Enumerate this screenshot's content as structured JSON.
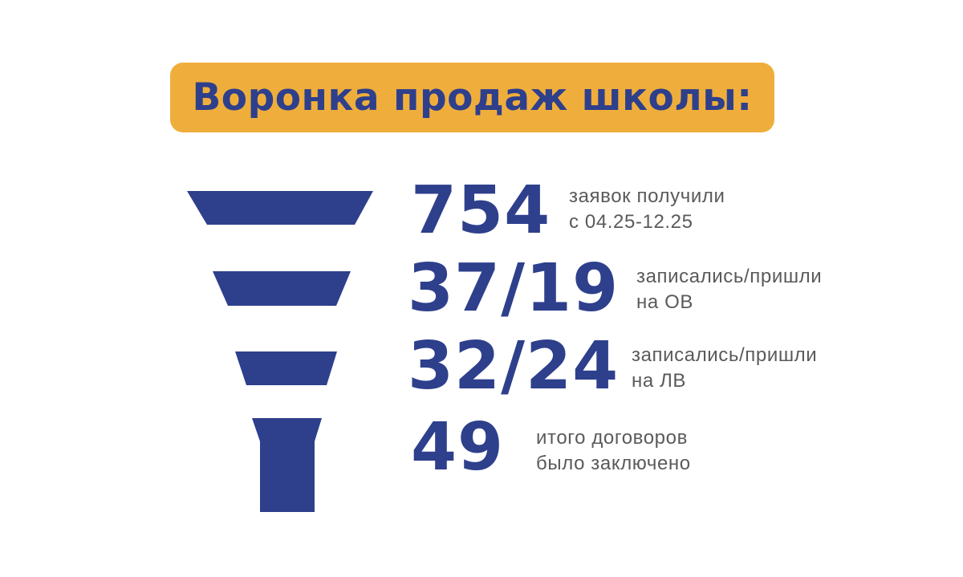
{
  "title": "Воронка продаж школы:",
  "colors": {
    "accent": "#EFAE3C",
    "primary": "#2E3F8C",
    "text": "#5a5a5a"
  },
  "stages": [
    {
      "value": "754",
      "line1": "заявок получили",
      "line2": "с 04.25-12.25"
    },
    {
      "value": "37/19",
      "line1": "записались/пришли",
      "line2": "на ОВ"
    },
    {
      "value": "32/24",
      "line1": "записались/пришли",
      "line2": "на ЛВ"
    },
    {
      "value": "49",
      "line1": "итого договоров",
      "line2": "было заключено"
    }
  ]
}
